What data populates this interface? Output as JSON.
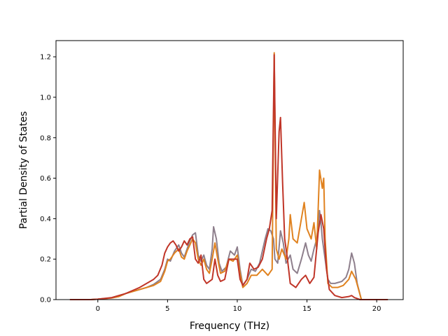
{
  "chart_data": {
    "type": "line",
    "title": "",
    "xlabel": "Frequency (THz)",
    "ylabel": "Partial Density of States",
    "xlim": [
      -3,
      21.9
    ],
    "ylim": [
      0,
      1.28
    ],
    "xticks": [
      0,
      5,
      10,
      15,
      20
    ],
    "yticks": [
      0.0,
      0.2,
      0.4,
      0.6,
      0.8,
      1.0,
      1.2
    ],
    "ytick_labels": [
      "0.0",
      "0.2",
      "0.4",
      "0.6",
      "0.8",
      "1.0",
      "1.2"
    ],
    "grid": false,
    "legend": "none",
    "series": [
      {
        "color": "#8e7f8c",
        "points": [
          [
            -2,
            0
          ],
          [
            -0.5,
            0
          ],
          [
            0,
            0.002
          ],
          [
            1,
            0.008
          ],
          [
            1.5,
            0.015
          ],
          [
            2,
            0.03
          ],
          [
            2.5,
            0.04
          ],
          [
            3,
            0.05
          ],
          [
            3.5,
            0.06
          ],
          [
            4,
            0.075
          ],
          [
            4.5,
            0.1
          ],
          [
            4.8,
            0.15
          ],
          [
            5,
            0.2
          ],
          [
            5.2,
            0.19
          ],
          [
            5.5,
            0.24
          ],
          [
            5.8,
            0.27
          ],
          [
            6,
            0.23
          ],
          [
            6.2,
            0.21
          ],
          [
            6.4,
            0.25
          ],
          [
            6.6,
            0.29
          ],
          [
            6.8,
            0.32
          ],
          [
            7,
            0.33
          ],
          [
            7.2,
            0.22
          ],
          [
            7.4,
            0.19
          ],
          [
            7.6,
            0.22
          ],
          [
            7.8,
            0.17
          ],
          [
            8,
            0.15
          ],
          [
            8.2,
            0.25
          ],
          [
            8.3,
            0.36
          ],
          [
            8.5,
            0.3
          ],
          [
            8.7,
            0.18
          ],
          [
            8.9,
            0.14
          ],
          [
            9.2,
            0.16
          ],
          [
            9.5,
            0.24
          ],
          [
            9.8,
            0.22
          ],
          [
            10,
            0.26
          ],
          [
            10.2,
            0.15
          ],
          [
            10.4,
            0.07
          ],
          [
            10.7,
            0.1
          ],
          [
            11,
            0.15
          ],
          [
            11.3,
            0.14
          ],
          [
            11.6,
            0.18
          ],
          [
            11.8,
            0.24
          ],
          [
            12,
            0.3
          ],
          [
            12.2,
            0.35
          ],
          [
            12.4,
            0.34
          ],
          [
            12.6,
            0.3
          ],
          [
            12.7,
            0.2
          ],
          [
            12.9,
            0.18
          ],
          [
            13.1,
            0.34
          ],
          [
            13.3,
            0.28
          ],
          [
            13.5,
            0.18
          ],
          [
            13.8,
            0.22
          ],
          [
            14,
            0.15
          ],
          [
            14.3,
            0.13
          ],
          [
            14.6,
            0.2
          ],
          [
            14.9,
            0.28
          ],
          [
            15.1,
            0.22
          ],
          [
            15.3,
            0.19
          ],
          [
            15.5,
            0.25
          ],
          [
            15.7,
            0.3
          ],
          [
            15.9,
            0.44
          ],
          [
            16,
            0.38
          ],
          [
            16.1,
            0.3
          ],
          [
            16.3,
            0.2
          ],
          [
            16.5,
            0.1
          ],
          [
            16.7,
            0.08
          ],
          [
            17,
            0.08
          ],
          [
            17.5,
            0.09
          ],
          [
            17.8,
            0.11
          ],
          [
            18,
            0.15
          ],
          [
            18.2,
            0.23
          ],
          [
            18.4,
            0.18
          ],
          [
            18.6,
            0.08
          ],
          [
            18.9,
            0
          ],
          [
            20.8,
            0
          ]
        ]
      },
      {
        "color": "#e0821f",
        "points": [
          [
            -2,
            0
          ],
          [
            -0.5,
            0
          ],
          [
            0,
            0.002
          ],
          [
            1,
            0.008
          ],
          [
            1.5,
            0.015
          ],
          [
            2,
            0.03
          ],
          [
            2.5,
            0.04
          ],
          [
            3,
            0.05
          ],
          [
            3.5,
            0.06
          ],
          [
            4,
            0.07
          ],
          [
            4.5,
            0.09
          ],
          [
            4.8,
            0.14
          ],
          [
            5,
            0.19
          ],
          [
            5.2,
            0.2
          ],
          [
            5.5,
            0.23
          ],
          [
            5.8,
            0.25
          ],
          [
            6,
            0.21
          ],
          [
            6.2,
            0.2
          ],
          [
            6.4,
            0.24
          ],
          [
            6.6,
            0.27
          ],
          [
            6.8,
            0.3
          ],
          [
            7,
            0.28
          ],
          [
            7.2,
            0.2
          ],
          [
            7.4,
            0.17
          ],
          [
            7.6,
            0.2
          ],
          [
            7.8,
            0.15
          ],
          [
            8,
            0.13
          ],
          [
            8.2,
            0.2
          ],
          [
            8.4,
            0.28
          ],
          [
            8.6,
            0.2
          ],
          [
            8.8,
            0.13
          ],
          [
            9.1,
            0.14
          ],
          [
            9.4,
            0.2
          ],
          [
            9.7,
            0.19
          ],
          [
            10,
            0.22
          ],
          [
            10.2,
            0.13
          ],
          [
            10.4,
            0.06
          ],
          [
            10.7,
            0.08
          ],
          [
            11,
            0.12
          ],
          [
            11.4,
            0.12
          ],
          [
            11.8,
            0.15
          ],
          [
            12.2,
            0.12
          ],
          [
            12.5,
            0.15
          ],
          [
            12.65,
            1.22
          ],
          [
            12.8,
            0.25
          ],
          [
            13,
            0.2
          ],
          [
            13.2,
            0.25
          ],
          [
            13.5,
            0.2
          ],
          [
            13.7,
            0.3
          ],
          [
            13.8,
            0.42
          ],
          [
            14,
            0.3
          ],
          [
            14.3,
            0.28
          ],
          [
            14.6,
            0.4
          ],
          [
            14.8,
            0.48
          ],
          [
            15,
            0.35
          ],
          [
            15.3,
            0.3
          ],
          [
            15.5,
            0.38
          ],
          [
            15.7,
            0.25
          ],
          [
            15.9,
            0.64
          ],
          [
            16.1,
            0.55
          ],
          [
            16.2,
            0.6
          ],
          [
            16.3,
            0.3
          ],
          [
            16.5,
            0.08
          ],
          [
            16.8,
            0.06
          ],
          [
            17.2,
            0.06
          ],
          [
            17.6,
            0.07
          ],
          [
            18,
            0.1
          ],
          [
            18.2,
            0.14
          ],
          [
            18.5,
            0.1
          ],
          [
            18.9,
            0
          ],
          [
            20.8,
            0
          ]
        ]
      },
      {
        "color": "#c03528",
        "points": [
          [
            -2,
            0
          ],
          [
            -0.5,
            0
          ],
          [
            0,
            0.002
          ],
          [
            1,
            0.01
          ],
          [
            1.5,
            0.02
          ],
          [
            2,
            0.03
          ],
          [
            2.5,
            0.045
          ],
          [
            3,
            0.06
          ],
          [
            3.5,
            0.08
          ],
          [
            4,
            0.1
          ],
          [
            4.3,
            0.12
          ],
          [
            4.6,
            0.17
          ],
          [
            4.8,
            0.23
          ],
          [
            5,
            0.26
          ],
          [
            5.2,
            0.28
          ],
          [
            5.4,
            0.29
          ],
          [
            5.6,
            0.27
          ],
          [
            5.8,
            0.24
          ],
          [
            6,
            0.26
          ],
          [
            6.2,
            0.29
          ],
          [
            6.4,
            0.27
          ],
          [
            6.6,
            0.3
          ],
          [
            6.8,
            0.31
          ],
          [
            7,
            0.2
          ],
          [
            7.2,
            0.18
          ],
          [
            7.4,
            0.22
          ],
          [
            7.6,
            0.1
          ],
          [
            7.8,
            0.08
          ],
          [
            8.2,
            0.1
          ],
          [
            8.4,
            0.2
          ],
          [
            8.6,
            0.12
          ],
          [
            8.8,
            0.09
          ],
          [
            9.1,
            0.1
          ],
          [
            9.4,
            0.2
          ],
          [
            9.7,
            0.2
          ],
          [
            10,
            0.2
          ],
          [
            10.2,
            0.1
          ],
          [
            10.4,
            0.07
          ],
          [
            10.7,
            0.1
          ],
          [
            10.9,
            0.18
          ],
          [
            11.2,
            0.15
          ],
          [
            11.5,
            0.16
          ],
          [
            11.8,
            0.2
          ],
          [
            12.1,
            0.3
          ],
          [
            12.3,
            0.35
          ],
          [
            12.5,
            0.44
          ],
          [
            12.65,
            1.21
          ],
          [
            12.8,
            0.4
          ],
          [
            13,
            0.83
          ],
          [
            13.1,
            0.9
          ],
          [
            13.25,
            0.58
          ],
          [
            13.4,
            0.3
          ],
          [
            13.6,
            0.2
          ],
          [
            13.8,
            0.08
          ],
          [
            14.2,
            0.06
          ],
          [
            14.6,
            0.1
          ],
          [
            14.9,
            0.12
          ],
          [
            15.2,
            0.08
          ],
          [
            15.5,
            0.11
          ],
          [
            15.8,
            0.33
          ],
          [
            16,
            0.42
          ],
          [
            16.2,
            0.35
          ],
          [
            16.4,
            0.15
          ],
          [
            16.6,
            0.05
          ],
          [
            17,
            0.02
          ],
          [
            17.5,
            0.01
          ],
          [
            18,
            0.015
          ],
          [
            18.2,
            0.02
          ],
          [
            18.4,
            0.01
          ],
          [
            18.8,
            0
          ],
          [
            20.8,
            0
          ]
        ]
      }
    ]
  }
}
